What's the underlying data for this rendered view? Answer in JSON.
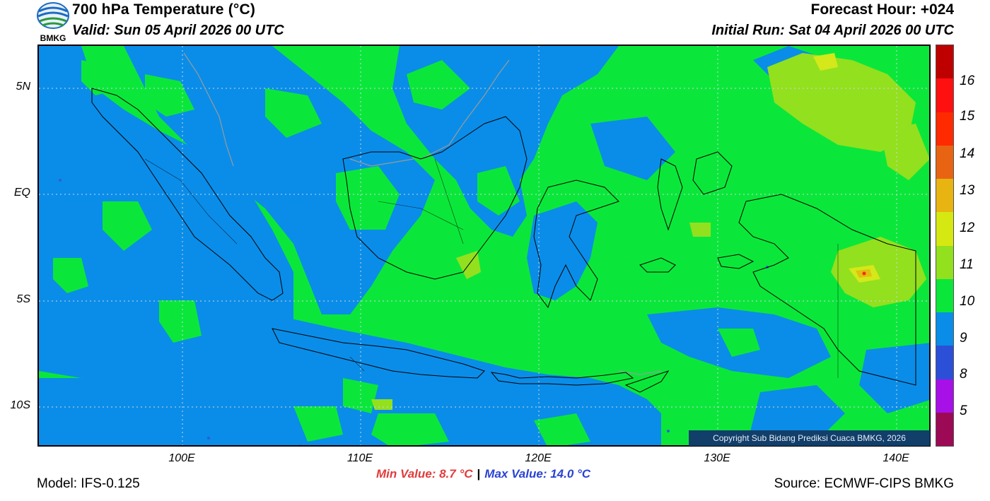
{
  "header": {
    "title": "700 hPa Temperature (°C)",
    "valid": "Valid: Sun 05 April 2026 00 UTC",
    "forecast_hour": "Forecast Hour: +024",
    "initial_run": "Initial Run: Sat 04 April 2026 00 UTC",
    "logo_text": "BMKG"
  },
  "map": {
    "lat_labels": [
      "5N",
      "EQ",
      "5S",
      "10S"
    ],
    "lon_labels": [
      "100E",
      "110E",
      "120E",
      "130E",
      "140E"
    ],
    "colors": {
      "c9": "#0a8de8",
      "c10": "#0be73a",
      "c11": "#93e01e",
      "c12": "#d4e81a",
      "c13": "#e0c010",
      "c_ocean_dark": "#2c5fd9",
      "coast": "#000000",
      "border_gray": "#9a9a9a"
    }
  },
  "colorbar": {
    "labels": [
      "16",
      "15",
      "14",
      "13",
      "12",
      "11",
      "10",
      "9",
      "8",
      "5"
    ],
    "colors": [
      "#bf0000",
      "#ff1010",
      "#ff2a00",
      "#e86412",
      "#e8b412",
      "#d6e812",
      "#93e01e",
      "#0be73a",
      "#0a8de8",
      "#2c4fd8",
      "#a810e8",
      "#9c0a56"
    ]
  },
  "footer": {
    "copyright": "Copyright Sub Bidang Prediksi Cuaca BMKG, 2026",
    "model": "Model: IFS-0.125",
    "min_value": "Min Value: 8.7 °C",
    "separator": "|",
    "max_value": "Max Value: 14.0 °C",
    "source": "Source: ECMWF-CIPS BMKG"
  }
}
